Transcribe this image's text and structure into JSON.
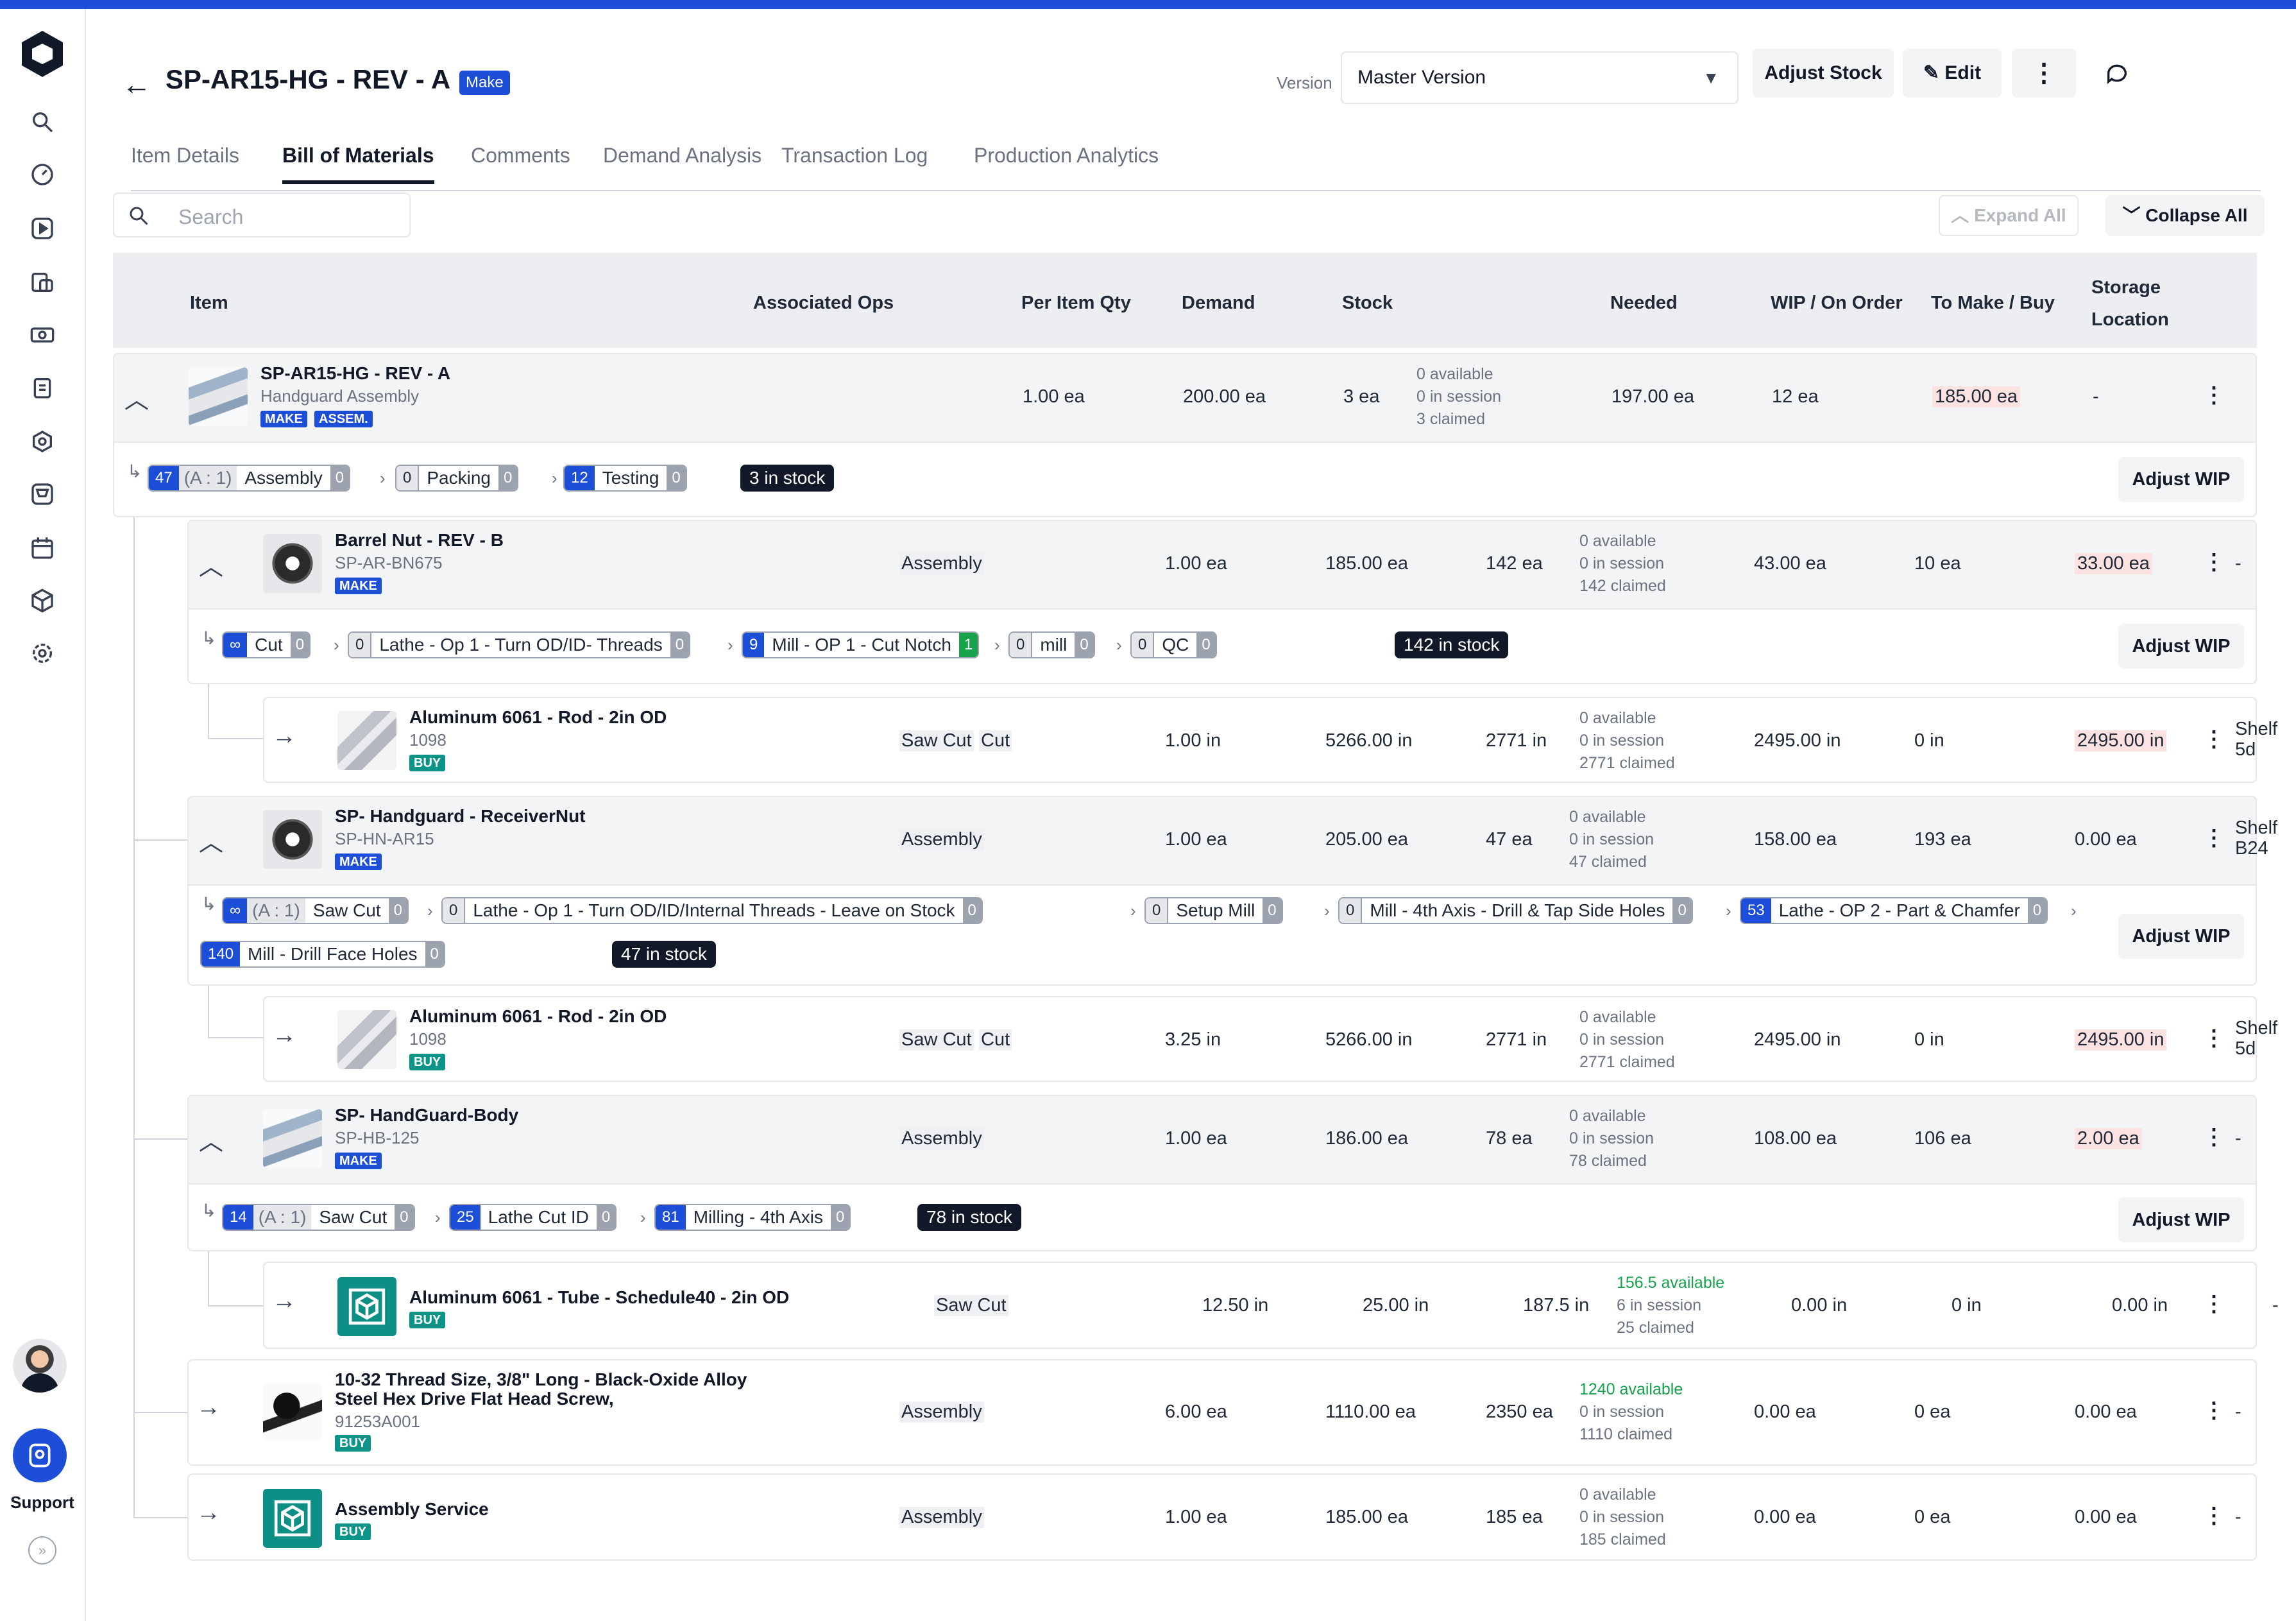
{
  "header": {
    "title": "SP-AR15-HG - REV - A",
    "badge": "Make",
    "version_label": "Version",
    "version_value": "Master Version",
    "adjust_stock": "Adjust Stock",
    "edit": "Edit"
  },
  "sidebar": {
    "support": "Support"
  },
  "tabs": [
    "Item Details",
    "Bill of Materials",
    "Comments",
    "Demand Analysis",
    "Transaction Log",
    "Production Analytics"
  ],
  "active_tab": "Bill of Materials",
  "search": {
    "placeholder": "Search"
  },
  "toolbar": {
    "expand_all": "Expand All",
    "collapse_all": "Collapse All"
  },
  "columns": [
    "Item",
    "Associated Ops",
    "Per Item Qty",
    "Demand",
    "Stock",
    "Needed",
    "WIP / On Order",
    "To Make / Buy",
    "Storage",
    "Location"
  ],
  "adjust_wip": "Adjust WIP",
  "rows": {
    "root": {
      "name": "SP-AR15-HG - REV - A",
      "sub": "Handguard Assembly",
      "badges": [
        "MAKE",
        "ASSEM."
      ],
      "qty": "1.00 ea",
      "demand": "200.00 ea",
      "stock": "3 ea",
      "avail": "0 available",
      "session": "0 in session",
      "claimed": "3 claimed",
      "needed": "197.00 ea",
      "wip": "12 ea",
      "tomake": "185.00 ea",
      "loc": "-",
      "ops": [
        {
          "n": "47",
          "r": "(A : 1)",
          "label": "Assembly",
          "c": "0"
        },
        {
          "n": "0",
          "label": "Packing",
          "c": "0"
        },
        {
          "n": "12",
          "label": "Testing",
          "c": "0"
        }
      ],
      "stock_tag": "3 in stock"
    },
    "barrel": {
      "name": "Barrel Nut - REV - B",
      "sub": "SP-AR-BN675",
      "badge": "MAKE",
      "assoc": "Assembly",
      "qty": "1.00 ea",
      "demand": "185.00 ea",
      "stock": "142 ea",
      "avail": "0 available",
      "session": "0 in session",
      "claimed": "142 claimed",
      "needed": "43.00 ea",
      "wip": "10 ea",
      "tomake": "33.00 ea",
      "loc": "-",
      "ops": [
        {
          "n": "∞",
          "label": "Cut",
          "c": "0"
        },
        {
          "n": "0",
          "label": "Lathe - Op 1 - Turn OD/ID- Threads",
          "c": "0"
        },
        {
          "n": "9",
          "label": "Mill - OP 1 - Cut Notch",
          "c": "1"
        },
        {
          "n": "0",
          "label": "mill",
          "c": "0"
        },
        {
          "n": "0",
          "label": "QC",
          "c": "0"
        }
      ],
      "stock_tag": "142 in stock"
    },
    "rod1": {
      "name": "Aluminum 6061 - Rod - 2in OD",
      "sub": "1098",
      "badge": "BUY",
      "assoc1": "Saw Cut",
      "assoc2": "Cut",
      "qty": "1.00 in",
      "demand": "5266.00 in",
      "stock": "2771 in",
      "avail": "0 available",
      "session": "0 in session",
      "claimed": "2771 claimed",
      "needed": "2495.00 in",
      "wip": "0 in",
      "tomake": "2495.00 in",
      "loc1": "Shelf",
      "loc2": "5d"
    },
    "receiver": {
      "name": "SP- Handguard - ReceiverNut",
      "sub": "SP-HN-AR15",
      "badge": "MAKE",
      "assoc": "Assembly",
      "qty": "1.00 ea",
      "demand": "205.00 ea",
      "stock": "47 ea",
      "avail": "0 available",
      "session": "0 in session",
      "claimed": "47 claimed",
      "needed": "158.00 ea",
      "wip": "193 ea",
      "tomake": "0.00 ea",
      "loc1": "Shelf",
      "loc2": "B24",
      "ops": [
        {
          "n": "∞",
          "r": "(A : 1)",
          "label": "Saw Cut",
          "c": "0"
        },
        {
          "n": "0",
          "label": "Lathe - Op 1 - Turn OD/ID/Internal Threads - Leave on Stock",
          "c": "0"
        },
        {
          "n": "0",
          "label": "Setup Mill",
          "c": "0"
        },
        {
          "n": "0",
          "label": "Mill - 4th Axis - Drill & Tap Side Holes",
          "c": "0"
        },
        {
          "n": "53",
          "label": "Lathe - OP 2 - Part & Chamfer",
          "c": "0"
        },
        {
          "n": "140",
          "label": "Mill - Drill Face Holes",
          "c": "0"
        }
      ],
      "stock_tag": "47 in stock"
    },
    "rod2": {
      "name": "Aluminum 6061 - Rod - 2in OD",
      "sub": "1098",
      "badge": "BUY",
      "assoc1": "Saw Cut",
      "assoc2": "Cut",
      "qty": "3.25 in",
      "demand": "5266.00 in",
      "stock": "2771 in",
      "avail": "0 available",
      "session": "0 in session",
      "claimed": "2771 claimed",
      "needed": "2495.00 in",
      "wip": "0 in",
      "tomake": "2495.00 in",
      "loc1": "Shelf",
      "loc2": "5d"
    },
    "body": {
      "name": "SP- HandGuard-Body",
      "sub": "SP-HB-125",
      "badge": "MAKE",
      "assoc": "Assembly",
      "qty": "1.00 ea",
      "demand": "186.00 ea",
      "stock": "78 ea",
      "avail": "0 available",
      "session": "0 in session",
      "claimed": "78 claimed",
      "needed": "108.00 ea",
      "wip": "106 ea",
      "tomake": "2.00 ea",
      "loc": "-",
      "ops": [
        {
          "n": "14",
          "r": "(A : 1)",
          "label": "Saw Cut",
          "c": "0"
        },
        {
          "n": "25",
          "label": "Lathe Cut ID",
          "c": "0"
        },
        {
          "n": "81",
          "label": "Milling - 4th Axis",
          "c": "0"
        }
      ],
      "stock_tag": "78 in stock"
    },
    "tube": {
      "name": "Aluminum 6061 - Tube - Schedule40 - 2in OD",
      "badge": "BUY",
      "assoc": "Saw Cut",
      "qty": "12.50 in",
      "demand": "25.00 in",
      "stock": "187.5 in",
      "avail": "156.5 available",
      "session": "6 in session",
      "claimed": "25 claimed",
      "needed": "0.00 in",
      "wip": "0 in",
      "tomake": "0.00 in",
      "loc": "-"
    },
    "screw": {
      "name1": "10-32 Thread Size, 3/8\" Long - Black-Oxide Alloy",
      "name2": "Steel Hex Drive Flat Head Screw,",
      "sub": "91253A001",
      "badge": "BUY",
      "assoc": "Assembly",
      "qty": "6.00 ea",
      "demand": "1110.00 ea",
      "stock": "2350 ea",
      "avail": "1240 available",
      "session": "0 in session",
      "claimed": "1110 claimed",
      "needed": "0.00 ea",
      "wip": "0 ea",
      "tomake": "0.00 ea",
      "loc": "-"
    },
    "service": {
      "name": "Assembly Service",
      "badge": "BUY",
      "assoc": "Assembly",
      "qty": "1.00 ea",
      "demand": "185.00 ea",
      "stock": "185 ea",
      "avail": "0 available",
      "session": "0 in session",
      "claimed": "185 claimed",
      "needed": "0.00 ea",
      "wip": "0 ea",
      "tomake": "0.00 ea",
      "loc": "-"
    }
  }
}
